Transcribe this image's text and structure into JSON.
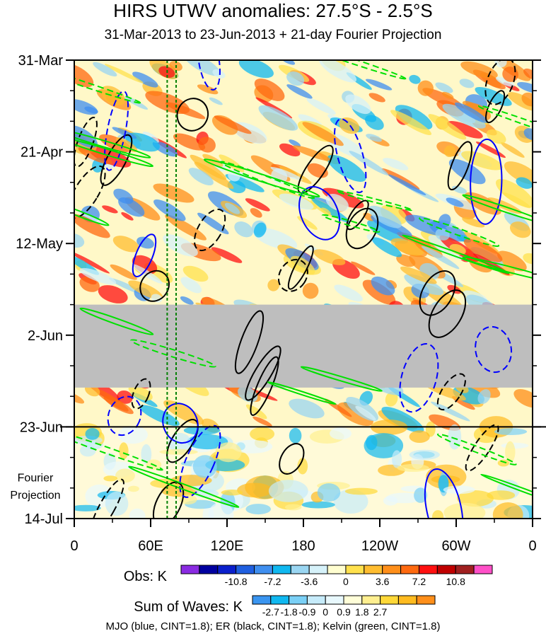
{
  "chart_data": {
    "type": "heatmap",
    "title": "HIRS UTWV anomalies: 27.5°S - 2.5°S",
    "subtitle": "31-Mar-2013 to 23-Jun-2013 + 21-day Fourier Projection",
    "x_tick_labels": [
      "0",
      "60E",
      "120E",
      "180",
      "120W",
      "60W",
      "0"
    ],
    "x_ticks_deg": [
      0,
      60,
      120,
      180,
      240,
      300,
      360
    ],
    "y_tick_labels": [
      "31-Mar",
      "21-Apr",
      "12-May",
      "2-Jun",
      "23-Jun",
      "14-Jul"
    ],
    "y_ticks_day": [
      0,
      21,
      42,
      63,
      84,
      105
    ],
    "observation_end_label": "23-Jun",
    "observation_end_day": 84,
    "projection_label_line1": "Fourier",
    "projection_label_line2": "Projection",
    "missing_data_days": [
      56,
      75
    ],
    "reference_lines_deg": [
      73,
      80
    ],
    "obs_colorbar": {
      "label": "Obs: K",
      "tick_labels": [
        "-10.8",
        "-7.2",
        "-3.6",
        "0",
        "3.6",
        "7.2",
        "10.8"
      ],
      "colors": [
        "#8a2be2",
        "#0000a0",
        "#0a1fcc",
        "#1f5fe0",
        "#3f8ff0",
        "#10b8f0",
        "#9ad6f2",
        "#d6f2fa",
        "#fffed0",
        "#ffe14d",
        "#ffbd30",
        "#ff8f1a",
        "#ff6a10",
        "#ff1010",
        "#c00000",
        "#a02020",
        "#ff50c8"
      ]
    },
    "waves_colorbar": {
      "label": "Sum of Waves: K",
      "tick_labels": [
        "-2.7",
        "-1.8",
        "-0.9",
        "0",
        "0.9",
        "1.8",
        "2.7"
      ],
      "colors": [
        "#3a95f0",
        "#10b8f0",
        "#7ad0f6",
        "#c6ebfa",
        "#e8f8fd",
        "#fffed8",
        "#ffef90",
        "#ffd838",
        "#ffbb20",
        "#ff8f1a"
      ]
    },
    "contours": [
      {
        "name": "MJO",
        "color": "#0000ff"
      },
      {
        "name": "ER",
        "color": "#000000"
      },
      {
        "name": "Kelvin",
        "color": "#00e000"
      }
    ],
    "footer": "MJO (blue, CINT=1.8); ER (black, CINT=1.8); Kelvin (green, CINT=1.8)"
  }
}
